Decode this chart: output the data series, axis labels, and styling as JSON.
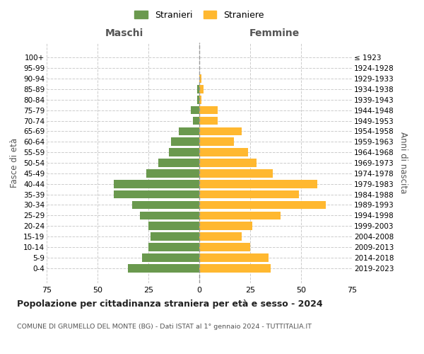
{
  "age_groups": [
    "0-4",
    "5-9",
    "10-14",
    "15-19",
    "20-24",
    "25-29",
    "30-34",
    "35-39",
    "40-44",
    "45-49",
    "50-54",
    "55-59",
    "60-64",
    "65-69",
    "70-74",
    "75-79",
    "80-84",
    "85-89",
    "90-94",
    "95-99",
    "100+"
  ],
  "birth_years": [
    "2019-2023",
    "2014-2018",
    "2009-2013",
    "2004-2008",
    "1999-2003",
    "1994-1998",
    "1989-1993",
    "1984-1988",
    "1979-1983",
    "1974-1978",
    "1969-1973",
    "1964-1968",
    "1959-1963",
    "1954-1958",
    "1949-1953",
    "1944-1948",
    "1939-1943",
    "1934-1938",
    "1929-1933",
    "1924-1928",
    "≤ 1923"
  ],
  "maschi": [
    35,
    28,
    25,
    24,
    25,
    29,
    33,
    42,
    42,
    26,
    20,
    15,
    14,
    10,
    3,
    4,
    1,
    1,
    0,
    0,
    0
  ],
  "femmine": [
    35,
    34,
    25,
    21,
    26,
    40,
    62,
    49,
    58,
    36,
    28,
    24,
    17,
    21,
    9,
    9,
    1,
    2,
    1,
    0,
    0
  ],
  "male_color": "#6a994e",
  "female_color": "#ffb830",
  "background_color": "#ffffff",
  "grid_color": "#cccccc",
  "title": "Popolazione per cittadinanza straniera per età e sesso - 2024",
  "subtitle": "COMUNE DI GRUMELLO DEL MONTE (BG) - Dati ISTAT al 1° gennaio 2024 - TUTTITALIA.IT",
  "xlabel_left": "Maschi",
  "xlabel_right": "Femmine",
  "ylabel_left": "Fasce di età",
  "ylabel_right": "Anni di nascita",
  "xlim": 75,
  "legend_maschi": "Stranieri",
  "legend_femmine": "Straniere"
}
